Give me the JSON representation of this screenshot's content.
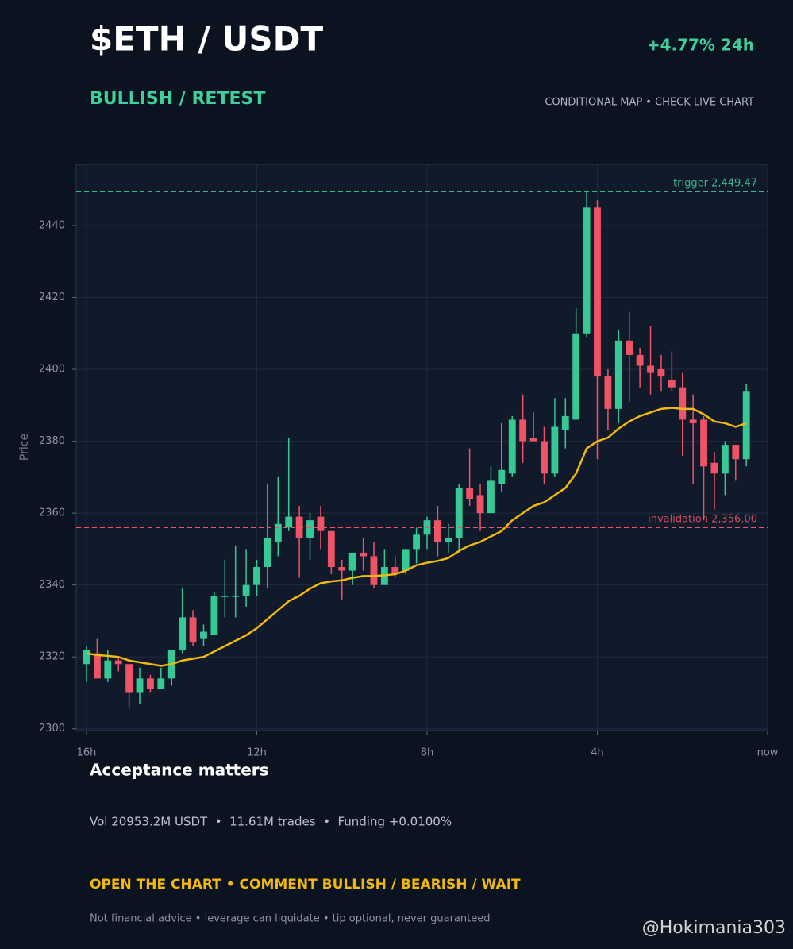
{
  "header": {
    "title": "$ETH / USDT",
    "change": "+4.77% 24h",
    "bias": "BULLISH / RETEST",
    "note": "CONDITIONAL MAP • CHECK LIVE CHART"
  },
  "chart_data": {
    "type": "candlestick",
    "y_label": "Price",
    "x": [
      -16,
      -15.75,
      -15.5,
      -15.25,
      -15,
      -14.75,
      -14.5,
      -14.25,
      -14,
      -13.75,
      -13.5,
      -13.25,
      -13,
      -12.75,
      -12.5,
      -12.25,
      -12,
      -11.75,
      -11.5,
      -11.25,
      -11,
      -10.75,
      -10.5,
      -10.25,
      -10,
      -9.75,
      -9.5,
      -9.25,
      -9,
      -8.75,
      -8.5,
      -8.25,
      -8,
      -7.75,
      -7.5,
      -7.25,
      -7,
      -6.75,
      -6.5,
      -6.25,
      -6,
      -5.75,
      -5.5,
      -5.25,
      -5,
      -4.75,
      -4.5,
      -4.25,
      -4,
      -3.75,
      -3.5,
      -3.25,
      -3,
      -2.75,
      -2.5,
      -2.25,
      -2,
      -1.75,
      -1.5,
      -1.25,
      -1,
      -0.75,
      -0.5
    ],
    "open": [
      2318,
      2321,
      2314,
      2319,
      2318,
      2310,
      2314,
      2311,
      2314,
      2322,
      2331,
      2325,
      2326,
      2337,
      2337,
      2337,
      2340,
      2345,
      2352,
      2356,
      2359,
      2353,
      2359,
      2355,
      2345,
      2344,
      2349,
      2348,
      2340,
      2345,
      2344,
      2350,
      2354,
      2358,
      2352,
      2353,
      2367,
      2365,
      2360,
      2368,
      2371,
      2386,
      2381,
      2380,
      2371,
      2383,
      2386,
      2410,
      2445,
      2398,
      2389,
      2408,
      2404,
      2401,
      2400,
      2397,
      2395,
      2386,
      2386,
      2374,
      2371,
      2379,
      2375
    ],
    "high": [
      2323,
      2325,
      2322,
      2320,
      2318,
      2317,
      2315,
      2317,
      2322,
      2339,
      2333,
      2329,
      2338,
      2347,
      2351,
      2350,
      2347,
      2368,
      2370,
      2381,
      2362,
      2360,
      2362,
      2355,
      2347,
      2349,
      2353,
      2352,
      2350,
      2348,
      2350,
      2356,
      2359,
      2362,
      2357,
      2368,
      2378,
      2368,
      2373,
      2385,
      2387,
      2393,
      2388,
      2384,
      2392,
      2392,
      2417,
      2449.5,
      2447,
      2400,
      2411,
      2416,
      2406,
      2412,
      2404,
      2405,
      2399,
      2393,
      2387,
      2377,
      2380,
      2379,
      2396
    ],
    "low": [
      2313,
      2314,
      2313,
      2316,
      2306,
      2307,
      2310,
      2311,
      2312,
      2321,
      2323,
      2323,
      2326,
      2331,
      2331,
      2334,
      2337,
      2339,
      2348,
      2355,
      2342,
      2347,
      2350,
      2343,
      2336,
      2340,
      2344,
      2339,
      2340,
      2342,
      2343,
      2346,
      2350,
      2348,
      2349,
      2349,
      2362,
      2355,
      2360,
      2366,
      2370,
      2374,
      2380,
      2368,
      2370,
      2378,
      2386,
      2409,
      2375,
      2383,
      2385,
      2391,
      2395,
      2393,
      2394,
      2394,
      2376,
      2368,
      2358,
      2361,
      2365,
      2369,
      2373
    ],
    "close": [
      2322,
      2314,
      2319,
      2318,
      2310,
      2314,
      2311,
      2314,
      2322,
      2331,
      2324,
      2327,
      2337,
      2337,
      2337,
      2340,
      2345,
      2353,
      2357,
      2359,
      2353,
      2358,
      2355,
      2345,
      2344,
      2349,
      2348,
      2340,
      2345,
      2343,
      2350,
      2354,
      2358,
      2352,
      2353,
      2367,
      2364,
      2360,
      2369,
      2372,
      2386,
      2380,
      2380,
      2371,
      2384,
      2387,
      2410,
      2445,
      2398,
      2389,
      2408,
      2404,
      2401,
      2399,
      2398,
      2395,
      2386,
      2385,
      2373,
      2371,
      2379,
      2375,
      2394
    ],
    "ma": [
      2321,
      2320.5,
      2320.3,
      2320,
      2319,
      2318.5,
      2318,
      2317.5,
      2318,
      2319,
      2319.5,
      2320,
      2321.5,
      2323,
      2324.5,
      2326,
      2328,
      2330.5,
      2333,
      2335.5,
      2337,
      2339,
      2340.5,
      2341,
      2341.3,
      2342,
      2342.5,
      2342.5,
      2342.7,
      2343,
      2344,
      2345.5,
      2346.2,
      2346.7,
      2347.5,
      2349.5,
      2351,
      2352,
      2353.5,
      2355,
      2358,
      2360,
      2362,
      2363,
      2365,
      2367,
      2371,
      2378,
      2380,
      2381,
      2383.5,
      2385.5,
      2387,
      2388,
      2389,
      2389.3,
      2389,
      2389,
      2387.5,
      2385.5,
      2385,
      2384,
      2385
    ],
    "up_color": "#37c995",
    "down_color": "#ef5466",
    "ma_color": "#f0b90b",
    "xlim": [
      -16.25,
      0
    ],
    "ylim": [
      2299.5,
      2457
    ],
    "xticks": [
      {
        "value": -16,
        "label": "16h"
      },
      {
        "value": -12,
        "label": "12h"
      },
      {
        "value": -8,
        "label": "8h"
      },
      {
        "value": -4,
        "label": "4h"
      },
      {
        "value": 0,
        "label": "now"
      }
    ],
    "yticks": [
      2300,
      2320,
      2340,
      2360,
      2380,
      2400,
      2420,
      2440
    ],
    "grid": true,
    "levels": [
      {
        "value": 2449.47,
        "label": "trigger 2,449.47",
        "color": "#3ecf9a"
      },
      {
        "value": 2356,
        "label": "invalidation 2,356.00",
        "color": "#ef5466"
      }
    ]
  },
  "footer": {
    "heading": "Acceptance matters",
    "stats": "Vol 20953.2M USDT  •  11.61M trades  •  Funding +0.0100%",
    "cta": "OPEN THE CHART • COMMENT BULLISH / BEARISH / WAIT",
    "disclaimer": "Not financial advice • leverage can liquidate • tip optional, never guaranteed",
    "watermark": "@Hokimania303"
  }
}
